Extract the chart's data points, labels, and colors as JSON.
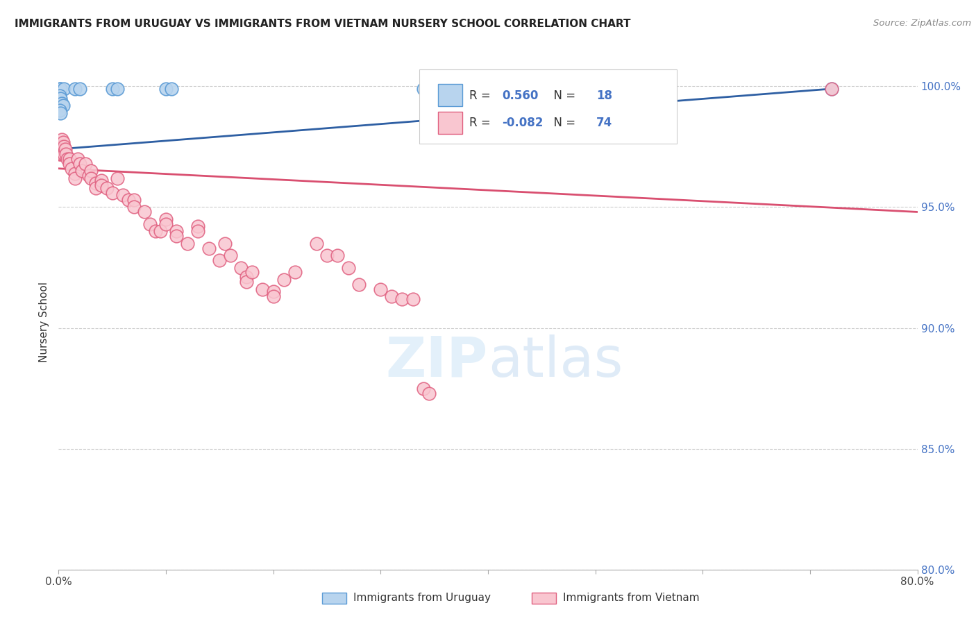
{
  "title": "IMMIGRANTS FROM URUGUAY VS IMMIGRANTS FROM VIETNAM NURSERY SCHOOL CORRELATION CHART",
  "source": "Source: ZipAtlas.com",
  "ylabel": "Nursery School",
  "x_min": 0.0,
  "x_max": 0.8,
  "y_min": 0.8,
  "y_max": 1.005,
  "y_ticks": [
    0.8,
    0.85,
    0.9,
    0.95,
    1.0
  ],
  "y_tick_labels": [
    "80.0%",
    "85.0%",
    "90.0%",
    "95.0%",
    "100.0%"
  ],
  "uruguay_color": "#b8d4ee",
  "uruguay_edge": "#5b9bd5",
  "vietnam_color": "#f9c6d0",
  "vietnam_edge": "#e06080",
  "trendline_uruguay_color": "#2e5fa3",
  "trendline_vietnam_color": "#d94f70",
  "uruguay_points": [
    [
      0.001,
      0.999
    ],
    [
      0.002,
      0.999
    ],
    [
      0.005,
      0.999
    ],
    [
      0.015,
      0.999
    ],
    [
      0.02,
      0.999
    ],
    [
      0.05,
      0.999
    ],
    [
      0.055,
      0.999
    ],
    [
      0.1,
      0.999
    ],
    [
      0.105,
      0.999
    ],
    [
      0.34,
      0.999
    ],
    [
      0.345,
      0.999
    ],
    [
      0.001,
      0.996
    ],
    [
      0.002,
      0.995
    ],
    [
      0.003,
      0.993
    ],
    [
      0.004,
      0.992
    ],
    [
      0.001,
      0.99
    ],
    [
      0.002,
      0.989
    ],
    [
      0.72,
      0.999
    ]
  ],
  "vietnam_points": [
    [
      0.001,
      0.975
    ],
    [
      0.001,
      0.972
    ],
    [
      0.002,
      0.975
    ],
    [
      0.002,
      0.972
    ],
    [
      0.003,
      0.978
    ],
    [
      0.003,
      0.975
    ],
    [
      0.003,
      0.972
    ],
    [
      0.004,
      0.977
    ],
    [
      0.004,
      0.974
    ],
    [
      0.005,
      0.975
    ],
    [
      0.005,
      0.972
    ],
    [
      0.006,
      0.974
    ],
    [
      0.007,
      0.972
    ],
    [
      0.008,
      0.97
    ],
    [
      0.01,
      0.97
    ],
    [
      0.01,
      0.968
    ],
    [
      0.012,
      0.966
    ],
    [
      0.015,
      0.964
    ],
    [
      0.015,
      0.962
    ],
    [
      0.018,
      0.97
    ],
    [
      0.02,
      0.968
    ],
    [
      0.022,
      0.965
    ],
    [
      0.025,
      0.968
    ],
    [
      0.028,
      0.963
    ],
    [
      0.03,
      0.965
    ],
    [
      0.03,
      0.962
    ],
    [
      0.035,
      0.96
    ],
    [
      0.035,
      0.958
    ],
    [
      0.04,
      0.961
    ],
    [
      0.04,
      0.959
    ],
    [
      0.045,
      0.958
    ],
    [
      0.05,
      0.956
    ],
    [
      0.055,
      0.962
    ],
    [
      0.06,
      0.955
    ],
    [
      0.065,
      0.953
    ],
    [
      0.07,
      0.953
    ],
    [
      0.07,
      0.95
    ],
    [
      0.08,
      0.948
    ],
    [
      0.085,
      0.943
    ],
    [
      0.09,
      0.94
    ],
    [
      0.095,
      0.94
    ],
    [
      0.1,
      0.945
    ],
    [
      0.1,
      0.943
    ],
    [
      0.11,
      0.94
    ],
    [
      0.11,
      0.938
    ],
    [
      0.12,
      0.935
    ],
    [
      0.13,
      0.942
    ],
    [
      0.13,
      0.94
    ],
    [
      0.14,
      0.933
    ],
    [
      0.15,
      0.928
    ],
    [
      0.155,
      0.935
    ],
    [
      0.16,
      0.93
    ],
    [
      0.17,
      0.925
    ],
    [
      0.175,
      0.921
    ],
    [
      0.175,
      0.919
    ],
    [
      0.18,
      0.923
    ],
    [
      0.19,
      0.916
    ],
    [
      0.2,
      0.915
    ],
    [
      0.2,
      0.913
    ],
    [
      0.21,
      0.92
    ],
    [
      0.22,
      0.923
    ],
    [
      0.24,
      0.935
    ],
    [
      0.25,
      0.93
    ],
    [
      0.26,
      0.93
    ],
    [
      0.27,
      0.925
    ],
    [
      0.28,
      0.918
    ],
    [
      0.3,
      0.916
    ],
    [
      0.31,
      0.913
    ],
    [
      0.32,
      0.912
    ],
    [
      0.33,
      0.912
    ],
    [
      0.34,
      0.875
    ],
    [
      0.345,
      0.873
    ],
    [
      0.72,
      0.999
    ]
  ]
}
